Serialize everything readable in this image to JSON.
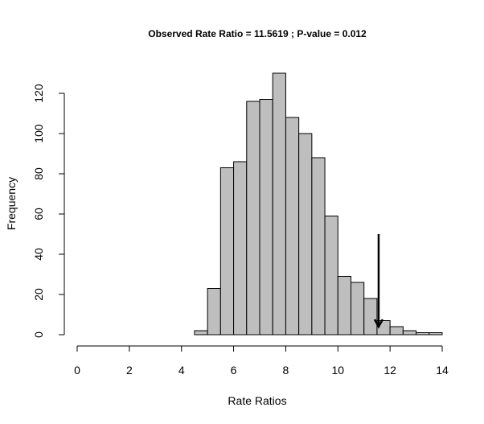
{
  "chart_data": {
    "type": "bar",
    "title": "Observed Rate Ratio = 11.5619 ; P-value = 0.012",
    "xlabel": "Rate Ratios",
    "ylabel": "Frequency",
    "xlim": [
      0,
      14
    ],
    "ylim": [
      0,
      130
    ],
    "xticks": [
      0,
      2,
      4,
      6,
      8,
      10,
      12,
      14
    ],
    "yticks": [
      0,
      20,
      40,
      60,
      80,
      100,
      120
    ],
    "bin_width": 0.5,
    "bins": [
      {
        "x0": 4.5,
        "x1": 5.0,
        "count": 2
      },
      {
        "x0": 5.0,
        "x1": 5.5,
        "count": 23
      },
      {
        "x0": 5.5,
        "x1": 6.0,
        "count": 83
      },
      {
        "x0": 6.0,
        "x1": 6.5,
        "count": 86
      },
      {
        "x0": 6.5,
        "x1": 7.0,
        "count": 116
      },
      {
        "x0": 7.0,
        "x1": 7.5,
        "count": 117
      },
      {
        "x0": 7.5,
        "x1": 8.0,
        "count": 130
      },
      {
        "x0": 8.0,
        "x1": 8.5,
        "count": 108
      },
      {
        "x0": 8.5,
        "x1": 9.0,
        "count": 100
      },
      {
        "x0": 9.0,
        "x1": 9.5,
        "count": 88
      },
      {
        "x0": 9.5,
        "x1": 10.0,
        "count": 59
      },
      {
        "x0": 10.0,
        "x1": 10.5,
        "count": 29
      },
      {
        "x0": 10.5,
        "x1": 11.0,
        "count": 26
      },
      {
        "x0": 11.0,
        "x1": 11.5,
        "count": 18
      },
      {
        "x0": 11.5,
        "x1": 12.0,
        "count": 7
      },
      {
        "x0": 12.0,
        "x1": 12.5,
        "count": 4
      },
      {
        "x0": 12.5,
        "x1": 13.0,
        "count": 2
      },
      {
        "x0": 13.0,
        "x1": 13.5,
        "count": 1
      },
      {
        "x0": 13.5,
        "x1": 14.0,
        "count": 1
      }
    ],
    "observed_marker": {
      "x": 11.5619,
      "arrow_from_y": 50,
      "arrow_to_y": 4
    },
    "colors": {
      "bar_fill": "#bebebe",
      "bar_stroke": "#000000",
      "axis": "#000000"
    }
  }
}
